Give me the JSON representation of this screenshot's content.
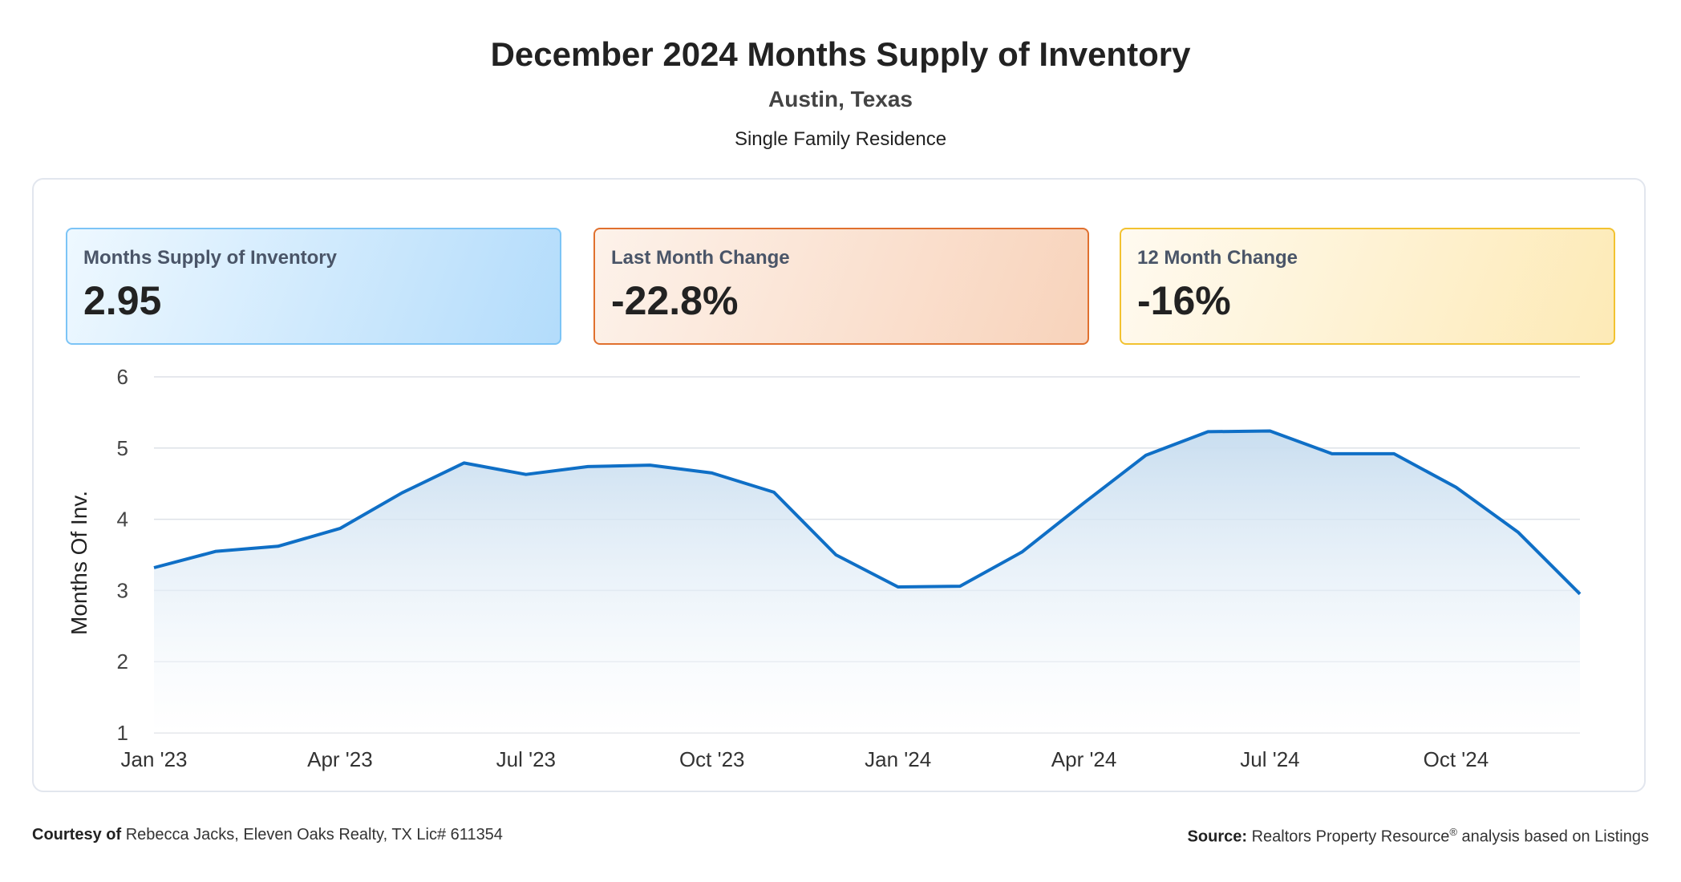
{
  "header": {
    "title": "December 2024 Months Supply of Inventory",
    "location": "Austin, Texas",
    "property_type": "Single Family Residence"
  },
  "stats": [
    {
      "label": "Months Supply of Inventory",
      "value": "2.95"
    },
    {
      "label": "Last Month Change",
      "value": "-22.8%"
    },
    {
      "label": "12 Month Change",
      "value": "-16%"
    }
  ],
  "footer": {
    "courtesy_label": "Courtesy of",
    "courtesy_text": "Rebecca Jacks, Eleven Oaks Realty, TX Lic# 611354",
    "source_label": "Source:",
    "source_text": "Realtors Property Resource",
    "source_mark": "®",
    "source_suffix": "analysis based on Listings"
  },
  "chart_data": {
    "type": "area",
    "ylabel": "Months Of Inv.",
    "ylim": [
      1,
      6
    ],
    "yticks": [
      1,
      2,
      3,
      4,
      5,
      6
    ],
    "x": [
      "Jan '23",
      "Feb '23",
      "Mar '23",
      "Apr '23",
      "May '23",
      "Jun '23",
      "Jul '23",
      "Aug '23",
      "Sep '23",
      "Oct '23",
      "Nov '23",
      "Dec '23",
      "Jan '24",
      "Feb '24",
      "Mar '24",
      "Apr '24",
      "May '24",
      "Jun '24",
      "Jul '24",
      "Aug '24",
      "Sep '24",
      "Oct '24",
      "Nov '24",
      "Dec '24"
    ],
    "xtick_labels": [
      "Jan '23",
      "Apr '23",
      "Jul '23",
      "Oct '23",
      "Jan '24",
      "Apr '24",
      "Jul '24",
      "Oct '24"
    ],
    "series": [
      {
        "values": [
          3.32,
          3.55,
          3.62,
          3.87,
          4.37,
          4.79,
          4.63,
          4.74,
          4.76,
          4.65,
          4.38,
          3.5,
          3.05,
          3.06,
          3.54,
          4.23,
          4.9,
          5.23,
          5.24,
          4.92,
          4.92,
          4.45,
          3.82,
          2.95
        ]
      }
    ],
    "colors": {
      "line": "#0f6fc6",
      "fill": "#cde0f1",
      "grid": "#dde1e7"
    },
    "grid": true,
    "legend": "none"
  }
}
